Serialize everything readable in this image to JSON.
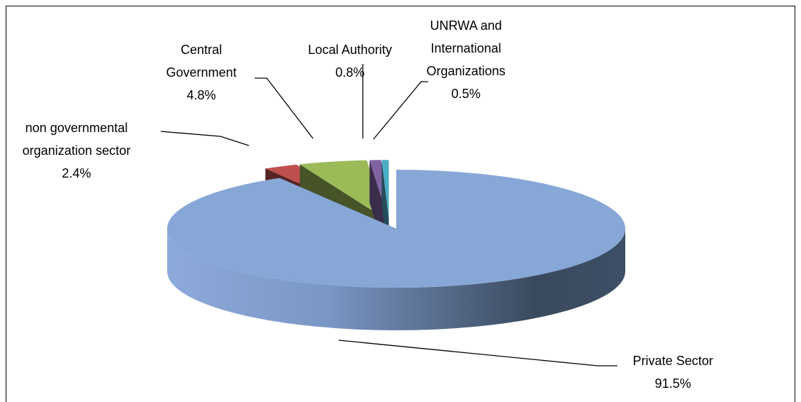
{
  "chart_data": {
    "type": "pie3d",
    "categories": [
      "Private Sector",
      "non governmental organization sector",
      "Central Government",
      "Local Authority",
      "UNRWA and International Organizations"
    ],
    "values": [
      91.5,
      2.4,
      4.8,
      0.8,
      0.5
    ],
    "value_labels": [
      "91.5%",
      "2.4%",
      "4.8%",
      "0.8%",
      "0.5%"
    ],
    "colors": [
      "#87a7d6",
      "#c0504d",
      "#9bbb59",
      "#8064a2",
      "#4bacc6"
    ]
  }
}
